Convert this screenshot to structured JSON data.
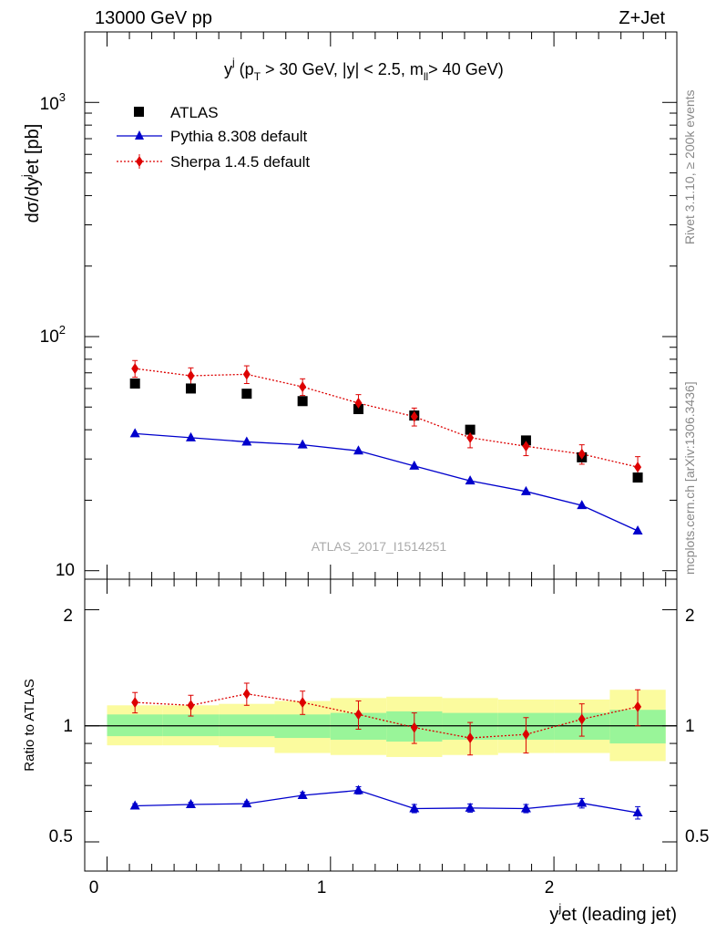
{
  "header": {
    "energy_label": "13000 GeV pp",
    "process_label": "Z+Jet"
  },
  "side_labels": {
    "rivet": "Rivet 3.1.10, ≥ 200k events",
    "mcplots": "mcplots.cern.ch [arXiv:1306.3436]"
  },
  "main_plot": {
    "cuts_title": "y^j (p_T > 30 GeV, |y| < 2.5, m_ll > 40 GeV)",
    "y_axis_label": "dσ/dy^jet [pb]",
    "watermark": "ATLAS_2017_I1514251",
    "y_ticks": [
      "10",
      "10^2",
      "10^3"
    ]
  },
  "ratio_plot": {
    "y_axis_label": "Ratio to ATLAS",
    "y_ticks": [
      "0.5",
      "1",
      "2"
    ],
    "x_axis_label": "y^jet (leading jet)",
    "x_ticks": [
      "0",
      "1",
      "2"
    ]
  },
  "legend": {
    "atlas": "ATLAS",
    "pythia": "Pythia 8.308 default",
    "sherpa": "Sherpa 1.4.5 default"
  },
  "colors": {
    "data": "#000000",
    "pythia": "#0000cc",
    "sherpa": "#dd0000",
    "band_inner": "#99f599",
    "band_outer": "#fbfb9e"
  },
  "chart_data": [
    {
      "type": "scatter",
      "title": "y^j (p_T > 30 GeV, |y| < 2.5, m_ll > 40 GeV)",
      "ylabel": "dσ/dy^jet [pb]",
      "y_scale": "log",
      "ylim": [
        9.2,
        2000
      ],
      "xlim": [
        -0.1,
        2.55
      ],
      "x": [
        0.125,
        0.375,
        0.625,
        0.875,
        1.125,
        1.375,
        1.625,
        1.875,
        2.125,
        2.375
      ],
      "series": [
        {
          "name": "ATLAS",
          "marker": "square",
          "values": [
            63,
            60,
            57,
            53,
            49,
            46,
            40,
            36,
            30.5,
            25
          ]
        },
        {
          "name": "Pythia 8.308 default",
          "marker": "triangle",
          "values": [
            38.5,
            37,
            35.5,
            34.5,
            32.5,
            28,
            24.2,
            21.8,
            19,
            14.8
          ]
        },
        {
          "name": "Sherpa 1.4.5 default",
          "marker": "diamond",
          "values": [
            73,
            68,
            69,
            61,
            52,
            45.5,
            37,
            34,
            31.5,
            27.7
          ],
          "errors": [
            6,
            5.5,
            6,
            5,
            4.5,
            4,
            3.5,
            3,
            3,
            3
          ]
        }
      ],
      "legend_position": "top-left"
    },
    {
      "type": "scatter",
      "ylabel": "Ratio to ATLAS",
      "xlabel": "y^jet (leading jet)",
      "y_scale": "log",
      "ylim": [
        0.42,
        2.4
      ],
      "xlim": [
        -0.1,
        2.55
      ],
      "x": [
        0.125,
        0.375,
        0.625,
        0.875,
        1.125,
        1.375,
        1.625,
        1.875,
        2.125,
        2.375
      ],
      "bin_edges": [
        0.0,
        0.25,
        0.5,
        0.75,
        1.0,
        1.25,
        1.5,
        1.75,
        2.0,
        2.25,
        2.5
      ],
      "reference_line": 1,
      "bands": {
        "inner": {
          "lower": [
            0.94,
            0.94,
            0.94,
            0.93,
            0.92,
            0.91,
            0.92,
            0.92,
            0.92,
            0.9
          ],
          "upper": [
            1.07,
            1.07,
            1.07,
            1.07,
            1.08,
            1.09,
            1.08,
            1.08,
            1.08,
            1.1
          ]
        },
        "outer": {
          "lower": [
            0.89,
            0.89,
            0.88,
            0.85,
            0.84,
            0.83,
            0.84,
            0.85,
            0.85,
            0.81
          ],
          "upper": [
            1.13,
            1.13,
            1.14,
            1.16,
            1.18,
            1.19,
            1.18,
            1.17,
            1.17,
            1.24
          ]
        }
      },
      "series": [
        {
          "name": "Pythia 8.308 default",
          "values": [
            0.62,
            0.625,
            0.628,
            0.66,
            0.68,
            0.61,
            0.612,
            0.61,
            0.63,
            0.595
          ],
          "errors": [
            0.008,
            0.008,
            0.008,
            0.012,
            0.015,
            0.015,
            0.015,
            0.015,
            0.018,
            0.022
          ]
        },
        {
          "name": "Sherpa 1.4.5 default",
          "values": [
            1.15,
            1.13,
            1.21,
            1.15,
            1.07,
            0.99,
            0.93,
            0.95,
            1.04,
            1.12
          ],
          "errors": [
            0.07,
            0.07,
            0.08,
            0.08,
            0.09,
            0.09,
            0.09,
            0.1,
            0.1,
            0.12
          ]
        }
      ]
    }
  ]
}
